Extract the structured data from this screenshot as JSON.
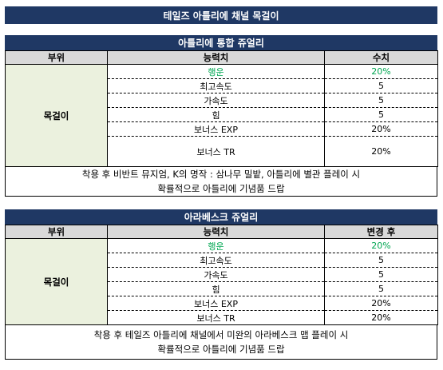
{
  "title": "테일즈 아틀리에 채널 목걸이",
  "sections": [
    {
      "heading": "아틀리에 통합 쥬얼리",
      "columns": [
        "부위",
        "능력치",
        "수치"
      ],
      "part": "목걸이",
      "rows": [
        {
          "stat": "행운",
          "value": "20%",
          "highlight": true
        },
        {
          "stat": "최고속도",
          "value": "5"
        },
        {
          "stat": "가속도",
          "value": "5"
        },
        {
          "stat": "힘",
          "value": "5"
        },
        {
          "stat": "보너스 EXP",
          "value": "20%"
        },
        {
          "stat": "보너스 TR",
          "value": "20%"
        }
      ],
      "note": [
        "착용 후 비반트 뮤지엄, K의 명작 : 삼나무 밀밭, 아틀리에 별관 플레이 시",
        "확률적으로 아틀리에 기념품 드랍"
      ]
    },
    {
      "heading": "아라베스크 쥬얼리",
      "columns": [
        "부위",
        "능력치",
        "변경 후"
      ],
      "part": "목걸이",
      "rows": [
        {
          "stat": "행운",
          "value": "20%",
          "highlight": true
        },
        {
          "stat": "최고속도",
          "value": "5"
        },
        {
          "stat": "가속도",
          "value": "5"
        },
        {
          "stat": "힘",
          "value": "5"
        },
        {
          "stat": "보너스 EXP",
          "value": "20%"
        },
        {
          "stat": "보너스 TR",
          "value": "20%"
        }
      ],
      "note": [
        "착용 후 테일즈 아틀리에 채널에서 미완의 아라베스크 맵 플레이 시",
        "확률적으로 아틀리에 기념품 드랍"
      ]
    }
  ],
  "colors": {
    "header_bg": "#1f3864",
    "column_header_bg": "#d9d9d9",
    "part_cell_bg": "#ebf1de",
    "highlight_text": "#00a651"
  }
}
